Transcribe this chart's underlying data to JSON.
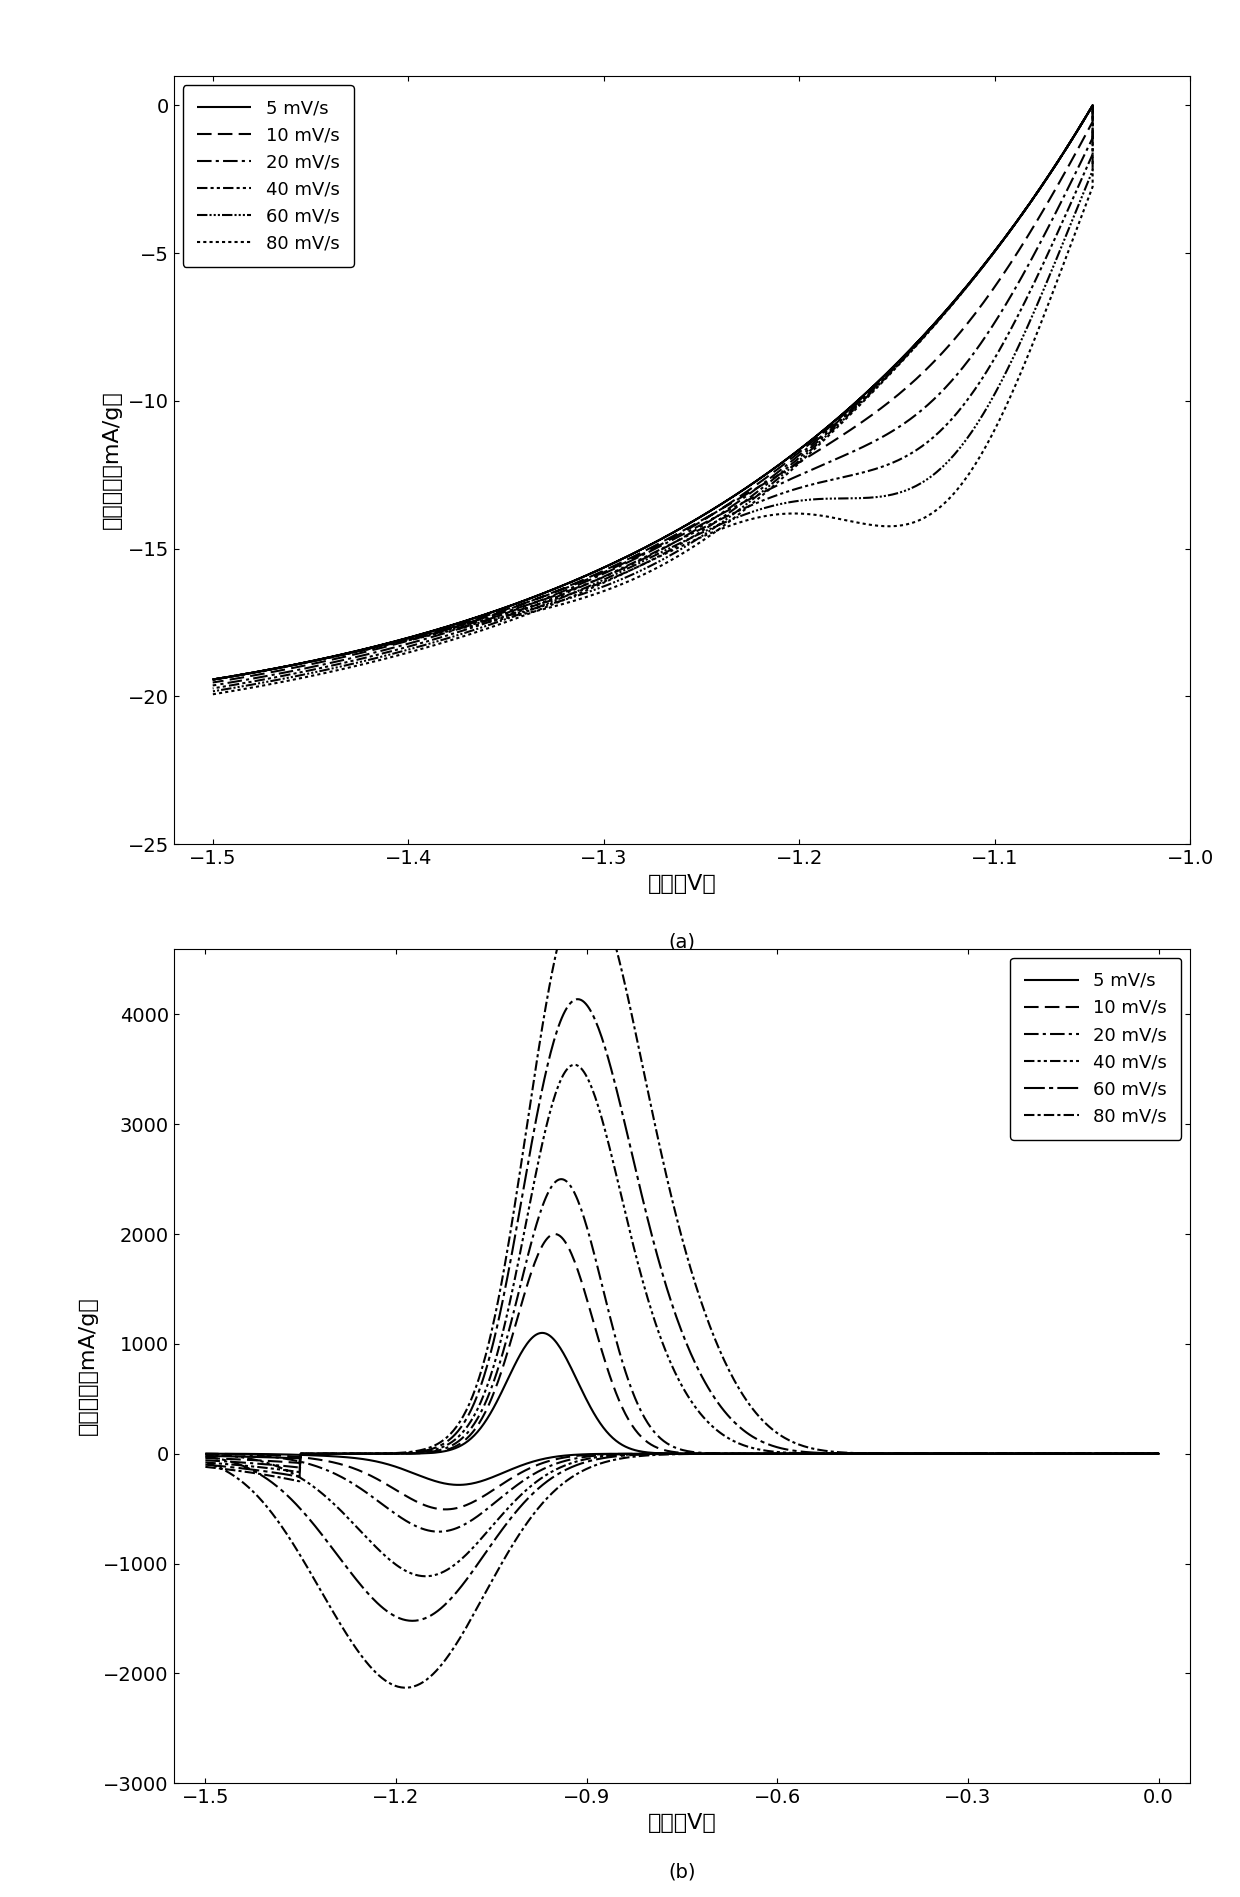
{
  "panel_a": {
    "xlabel": "电位（V）",
    "ylabel": "电流密度（mA/g）",
    "xlim": [
      -1.52,
      -1.0
    ],
    "ylim": [
      -25,
      1
    ],
    "xticks": [
      -1.5,
      -1.4,
      -1.3,
      -1.2,
      -1.1,
      -1.0
    ],
    "yticks": [
      0,
      -5,
      -10,
      -15,
      -20,
      -25
    ],
    "label": "(a)"
  },
  "panel_b": {
    "xlabel": "电位（V）",
    "ylabel": "电流密度（mA/g）",
    "xlim": [
      -1.55,
      0.05
    ],
    "ylim": [
      -3000,
      4600
    ],
    "xticks": [
      -1.5,
      -1.2,
      -0.9,
      -0.6,
      -0.3,
      0.0
    ],
    "yticks": [
      -3000,
      -2000,
      -1000,
      0,
      1000,
      2000,
      3000,
      4000
    ],
    "label": "(b)"
  },
  "legend_labels": [
    "5 mV/s",
    "10 mV/s",
    "20 mV/s",
    "40 mV/s",
    "60 mV/s",
    "80 mV/s"
  ],
  "color": "#000000",
  "background": "#ffffff",
  "font_size_label": 16,
  "font_size_tick": 14,
  "font_size_legend": 13,
  "font_size_panel_label": 14
}
